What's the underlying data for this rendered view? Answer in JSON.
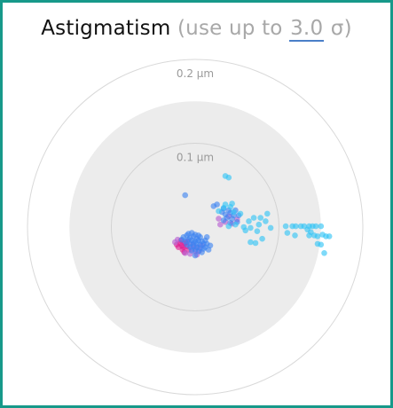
{
  "header": {
    "title": "Astigmatism",
    "paren_open": "(",
    "prefix": "use up to",
    "sigma_value": "3.0",
    "sigma_symbol": "σ",
    "paren_close": ")"
  },
  "chart_data": {
    "type": "scatter",
    "coordinate_system": "polar",
    "unit": "µm",
    "ring_labels": [
      "0.2 µm",
      "0.1 µm"
    ],
    "rings": [
      0.2,
      0.1
    ],
    "shaded_region_radius": 0.15,
    "colors": {
      "frame": "#17998a",
      "ring": "#d9d9d9",
      "shaded": "#ececec",
      "blue": "#3b82f0",
      "cyan": "#2ec3f5",
      "magenta": "#e0198f",
      "purple": "#b45bd0"
    },
    "series": [
      {
        "color": "magenta",
        "points": [
          [
            -0.016,
            -0.022
          ],
          [
            -0.014,
            -0.024
          ],
          [
            -0.012,
            -0.019
          ],
          [
            -0.018,
            -0.019
          ],
          [
            -0.01,
            -0.023
          ],
          [
            -0.015,
            -0.027
          ],
          [
            -0.02,
            -0.024
          ],
          [
            -0.008,
            -0.027
          ],
          [
            -0.017,
            -0.016
          ],
          [
            -0.022,
            -0.021
          ],
          [
            -0.01,
            -0.018
          ],
          [
            -0.013,
            -0.03
          ]
        ]
      },
      {
        "color": "purple",
        "points": [
          [
            -0.024,
            -0.018
          ],
          [
            -0.021,
            -0.015
          ],
          [
            -0.004,
            -0.026
          ],
          [
            0.0,
            -0.029
          ],
          [
            0.002,
            -0.024
          ],
          [
            -0.006,
            -0.032
          ],
          [
            -0.009,
            -0.017
          ],
          [
            0.005,
            -0.028
          ],
          [
            -0.003,
            -0.021
          ],
          [
            -0.012,
            -0.031
          ],
          [
            0.008,
            -0.022
          ],
          [
            0.002,
            -0.033
          ],
          [
            0.03,
            0.003
          ],
          [
            0.036,
            0.006
          ],
          [
            0.044,
            0.004
          ],
          [
            0.028,
            0.01
          ],
          [
            0.04,
            0.013
          ],
          [
            0.05,
            0.009
          ]
        ]
      },
      {
        "color": "blue",
        "points": [
          [
            -0.014,
            -0.012
          ],
          [
            -0.01,
            -0.01
          ],
          [
            -0.006,
            -0.013
          ],
          [
            -0.002,
            -0.011
          ],
          [
            0.002,
            -0.014
          ],
          [
            0.006,
            -0.012
          ],
          [
            -0.012,
            -0.017
          ],
          [
            -0.008,
            -0.015
          ],
          [
            -0.004,
            -0.016
          ],
          [
            0.0,
            -0.017
          ],
          [
            0.004,
            -0.016
          ],
          [
            0.008,
            -0.017
          ],
          [
            -0.01,
            -0.021
          ],
          [
            -0.006,
            -0.02
          ],
          [
            -0.002,
            -0.019
          ],
          [
            0.002,
            -0.02
          ],
          [
            0.006,
            -0.021
          ],
          [
            0.01,
            -0.02
          ],
          [
            -0.006,
            -0.024
          ],
          [
            -0.002,
            -0.023
          ],
          [
            0.002,
            -0.024
          ],
          [
            0.006,
            -0.025
          ],
          [
            0.01,
            -0.026
          ],
          [
            -0.004,
            -0.028
          ],
          [
            0.0,
            -0.027
          ],
          [
            0.004,
            -0.029
          ],
          [
            0.008,
            -0.03
          ],
          [
            0.012,
            -0.024
          ],
          [
            0.012,
            -0.016
          ],
          [
            -0.008,
            -0.008
          ],
          [
            -0.004,
            -0.007
          ],
          [
            0.0,
            -0.009
          ],
          [
            -0.016,
            -0.015
          ],
          [
            0.014,
            -0.02
          ],
          [
            0.004,
            -0.01
          ],
          [
            0.0,
            -0.034
          ],
          [
            0.018,
            -0.022
          ],
          [
            0.016,
            -0.027
          ],
          [
            0.014,
            -0.012
          ],
          [
            0.032,
            0.018
          ],
          [
            0.036,
            0.015
          ],
          [
            0.042,
            0.017
          ],
          [
            0.038,
            0.011
          ],
          [
            0.044,
            0.01
          ],
          [
            0.034,
            0.008
          ],
          [
            0.04,
            0.02
          ],
          [
            0.046,
            0.014
          ],
          [
            0.048,
            0.02
          ],
          [
            0.052,
            0.014
          ],
          [
            0.042,
            0.005
          ],
          [
            0.034,
            0.022
          ],
          [
            0.05,
            0.006
          ],
          [
            0.026,
            0.027
          ],
          [
            0.022,
            0.025
          ],
          [
            -0.012,
            0.038
          ]
        ]
      },
      {
        "color": "cyan",
        "points": [
          [
            0.034,
            0.023
          ],
          [
            0.042,
            0.024
          ],
          [
            0.046,
            0.018
          ],
          [
            0.054,
            0.016
          ],
          [
            0.048,
            0.003
          ],
          [
            0.04,
            0.001
          ],
          [
            0.058,
            0.0
          ],
          [
            0.036,
            0.027
          ],
          [
            0.028,
            0.019
          ],
          [
            0.044,
            0.028
          ],
          [
            0.036,
            0.061
          ],
          [
            0.04,
            0.059
          ],
          [
            0.07,
            0.011
          ],
          [
            0.064,
            0.007
          ],
          [
            0.076,
            0.003
          ],
          [
            0.078,
            0.011
          ],
          [
            0.066,
            -0.001
          ],
          [
            0.06,
            -0.004
          ],
          [
            0.074,
            -0.005
          ],
          [
            0.072,
            -0.019
          ],
          [
            0.08,
            -0.014
          ],
          [
            0.066,
            -0.018
          ],
          [
            0.084,
            0.007
          ],
          [
            0.09,
            -0.001
          ],
          [
            0.086,
            0.016
          ],
          [
            0.108,
            0.001
          ],
          [
            0.11,
            -0.007
          ],
          [
            0.116,
            0.001
          ],
          [
            0.12,
            0.001
          ],
          [
            0.126,
            0.001
          ],
          [
            0.13,
            0.001
          ],
          [
            0.136,
            0.001
          ],
          [
            0.14,
            0.001
          ],
          [
            0.144,
            0.001
          ],
          [
            0.15,
            0.001
          ],
          [
            0.134,
            -0.003
          ],
          [
            0.138,
            -0.006
          ],
          [
            0.142,
            -0.01
          ],
          [
            0.146,
            -0.011
          ],
          [
            0.152,
            -0.009
          ],
          [
            0.156,
            -0.011
          ],
          [
            0.16,
            -0.011
          ],
          [
            0.146,
            -0.02
          ],
          [
            0.15,
            -0.021
          ],
          [
            0.154,
            -0.031
          ],
          [
            0.136,
            -0.01
          ],
          [
            0.119,
            -0.01
          ]
        ]
      }
    ]
  }
}
